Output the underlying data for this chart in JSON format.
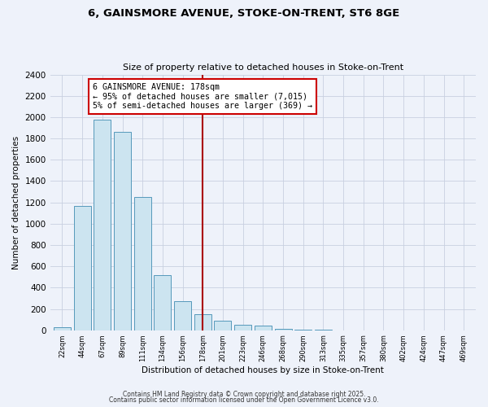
{
  "title": "6, GAINSMORE AVENUE, STOKE-ON-TRENT, ST6 8GE",
  "subtitle": "Size of property relative to detached houses in Stoke-on-Trent",
  "xlabel": "Distribution of detached houses by size in Stoke-on-Trent",
  "ylabel": "Number of detached properties",
  "bar_labels": [
    "22sqm",
    "44sqm",
    "67sqm",
    "89sqm",
    "111sqm",
    "134sqm",
    "156sqm",
    "178sqm",
    "201sqm",
    "223sqm",
    "246sqm",
    "268sqm",
    "290sqm",
    "313sqm",
    "335sqm",
    "357sqm",
    "380sqm",
    "402sqm",
    "424sqm",
    "447sqm",
    "469sqm"
  ],
  "bar_heights": [
    30,
    1170,
    1980,
    1860,
    1250,
    520,
    275,
    150,
    90,
    50,
    40,
    15,
    5,
    2,
    1,
    1,
    0,
    0,
    0,
    0,
    0
  ],
  "bar_color": "#cce4f0",
  "bar_edge_color": "#5599bb",
  "vline_x_index": 7,
  "vline_color": "#aa0000",
  "annotation_title": "6 GAINSMORE AVENUE: 178sqm",
  "annotation_line1": "← 95% of detached houses are smaller (7,015)",
  "annotation_line2": "5% of semi-detached houses are larger (369) →",
  "annotation_box_color": "white",
  "annotation_box_edge": "#cc0000",
  "ylim": [
    0,
    2400
  ],
  "yticks": [
    0,
    200,
    400,
    600,
    800,
    1000,
    1200,
    1400,
    1600,
    1800,
    2000,
    2200,
    2400
  ],
  "bg_color": "#eef2fa",
  "grid_color": "#c8d0e0",
  "footer1": "Contains HM Land Registry data © Crown copyright and database right 2025.",
  "footer2": "Contains public sector information licensed under the Open Government Licence v3.0."
}
